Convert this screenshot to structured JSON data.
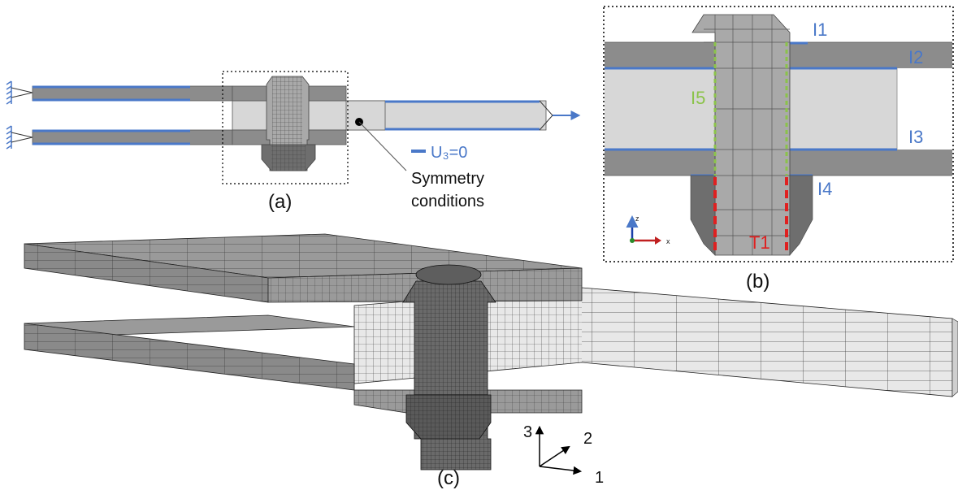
{
  "colors": {
    "plate_dark": "#8c8c8c",
    "plate_light": "#d7d7d7",
    "bolt": "#a9a9a9",
    "nut": "#6e6e6e",
    "blue": "#4a78c8",
    "green": "#8bc34a",
    "red": "#e02020",
    "mesh_line": "#2a2a2a"
  },
  "panel_a": {
    "label": "(a)",
    "legend_text": "U₃=0",
    "symmetry_text_1": "Symmetry",
    "symmetry_text_2": "conditions"
  },
  "panel_b": {
    "label": "(b)",
    "i1": "I1",
    "i2": "I2",
    "i3": "I3",
    "i4": "I4",
    "i5": "I5",
    "t1": "T1",
    "axis_z": "z",
    "axis_x": "x"
  },
  "panel_c": {
    "label": "(c)",
    "axis_1": "1",
    "axis_2": "2",
    "axis_3": "3"
  }
}
